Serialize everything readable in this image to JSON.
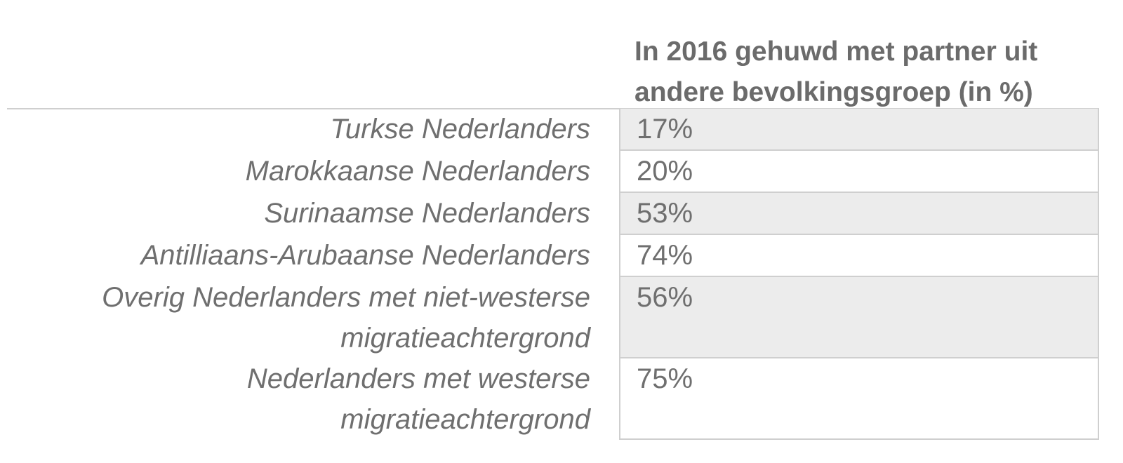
{
  "chart_data": {
    "type": "table",
    "column_header": "In 2016 gehuwd met partner uit\nandere bevolkingsgroep (in %)",
    "rows": [
      {
        "label": "Turkse Nederlanders",
        "value_text": "17%",
        "value": 17
      },
      {
        "label": "Marokkaanse Nederlanders",
        "value_text": "20%",
        "value": 20
      },
      {
        "label": "Surinaamse Nederlanders",
        "value_text": "53%",
        "value": 53
      },
      {
        "label": "Antilliaans-Arubaanse Nederlanders",
        "value_text": "74%",
        "value": 74
      },
      {
        "label": "Overig Nederlanders met niet-westerse\nmigratieachtergrond",
        "value_text": "56%",
        "value": 56
      },
      {
        "label": "Nederlanders met westerse\nmigratieachtergrond",
        "value_text": "75%",
        "value": 75
      }
    ],
    "colors": {
      "text": "#6f6f6f",
      "shaded_row": "#ececec",
      "border": "#cfcfcf"
    }
  }
}
